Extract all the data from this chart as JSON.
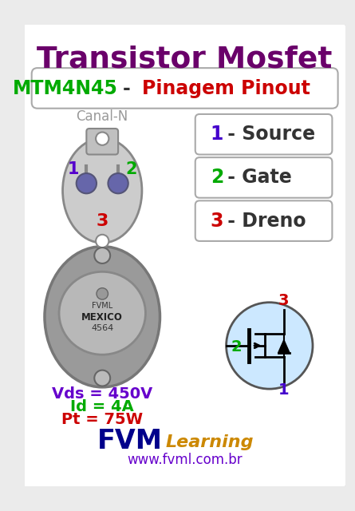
{
  "title1": "Transistor Mosfet",
  "title1_color": "#6a006a",
  "title2_green": "MTM4N45",
  "title2_green_color": "#00aa00",
  "title2_red": "Pinagem Pinout",
  "title2_red_color": "#cc0000",
  "canal_label": "Canal-N",
  "canal_color": "#999999",
  "pin1_color": "#5500cc",
  "pin2_color": "#00aa00",
  "pin3_color": "#cc0000",
  "source_color": "#4400cc",
  "gate_color": "#00aa00",
  "dreno_color": "#cc0000",
  "vds_label": "Vds = 450V",
  "vds_color": "#6600cc",
  "id_label": "Id = 4A",
  "id_color": "#00aa00",
  "pt_label": "Pt = 75W",
  "pt_color": "#cc0000",
  "fvm_color": "#00008b",
  "learning_color": "#cc8800",
  "url_label": "www.fvml.com.br",
  "url_color": "#6600cc",
  "bg_color": "#ebebeb",
  "card_bg": "#ffffff",
  "border_color": "#aaaaaa"
}
